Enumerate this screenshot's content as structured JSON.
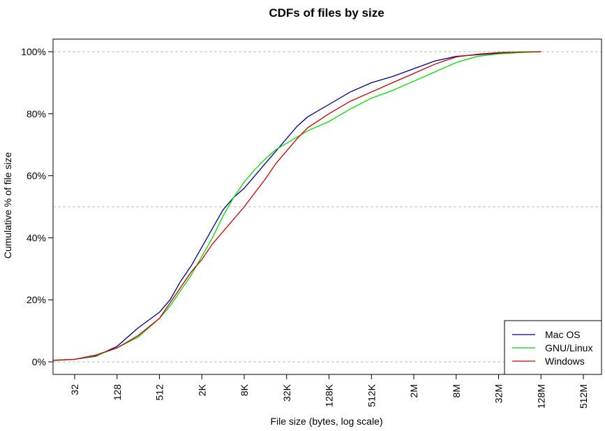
{
  "chart_data": {
    "type": "line",
    "title": "CDFs of files by size",
    "xlabel": "File size (bytes, log scale)",
    "ylabel": "Cumulative % of file size",
    "x_scale": "log2",
    "xlim_log2": [
      4,
      31
    ],
    "ylim": [
      0,
      1.02
    ],
    "x_ticks": [
      {
        "label": "32",
        "log2": 5
      },
      {
        "label": "128",
        "log2": 7
      },
      {
        "label": "512",
        "log2": 9
      },
      {
        "label": "2K",
        "log2": 11
      },
      {
        "label": "8K",
        "log2": 13
      },
      {
        "label": "32K",
        "log2": 15
      },
      {
        "label": "128K",
        "log2": 17
      },
      {
        "label": "512K",
        "log2": 19
      },
      {
        "label": "2M",
        "log2": 21
      },
      {
        "label": "8M",
        "log2": 23
      },
      {
        "label": "32M",
        "log2": 25
      },
      {
        "label": "128M",
        "log2": 27
      },
      {
        "label": "512M",
        "log2": 29
      }
    ],
    "y_ticks": [
      {
        "label": "0%",
        "value": 0
      },
      {
        "label": "20%",
        "value": 0.2
      },
      {
        "label": "40%",
        "value": 0.4
      },
      {
        "label": "60%",
        "value": 0.6
      },
      {
        "label": "80%",
        "value": 0.8
      },
      {
        "label": "100%",
        "value": 1.0
      }
    ],
    "reference_lines": [
      0,
      0.5,
      1.0
    ],
    "legend_position": "bottom-right",
    "series": [
      {
        "name": "Mac OS",
        "color": "#00008b",
        "points": [
          [
            4,
            0.005
          ],
          [
            5,
            0.008
          ],
          [
            6,
            0.018
          ],
          [
            7,
            0.05
          ],
          [
            8,
            0.11
          ],
          [
            9,
            0.16
          ],
          [
            9.5,
            0.2
          ],
          [
            10,
            0.26
          ],
          [
            10.5,
            0.31
          ],
          [
            11,
            0.37
          ],
          [
            11.5,
            0.43
          ],
          [
            12,
            0.49
          ],
          [
            12.5,
            0.53
          ],
          [
            13,
            0.56
          ],
          [
            13.5,
            0.6
          ],
          [
            14,
            0.64
          ],
          [
            14.5,
            0.68
          ],
          [
            15,
            0.72
          ],
          [
            15.5,
            0.76
          ],
          [
            16,
            0.79
          ],
          [
            17,
            0.83
          ],
          [
            18,
            0.87
          ],
          [
            19,
            0.9
          ],
          [
            20,
            0.92
          ],
          [
            21,
            0.945
          ],
          [
            22,
            0.97
          ],
          [
            23,
            0.985
          ],
          [
            24,
            0.99
          ],
          [
            25,
            0.995
          ],
          [
            26,
            0.998
          ],
          [
            27,
            1.0
          ]
        ]
      },
      {
        "name": "GNU/Linux",
        "color": "#00dd00",
        "points": [
          [
            4,
            0.005
          ],
          [
            5,
            0.008
          ],
          [
            6,
            0.02
          ],
          [
            7,
            0.045
          ],
          [
            8,
            0.08
          ],
          [
            9,
            0.14
          ],
          [
            9.5,
            0.18
          ],
          [
            10,
            0.23
          ],
          [
            10.5,
            0.28
          ],
          [
            11,
            0.34
          ],
          [
            11.5,
            0.4
          ],
          [
            12,
            0.47
          ],
          [
            12.5,
            0.53
          ],
          [
            13,
            0.58
          ],
          [
            13.5,
            0.62
          ],
          [
            14,
            0.655
          ],
          [
            14.5,
            0.685
          ],
          [
            15,
            0.705
          ],
          [
            15.5,
            0.725
          ],
          [
            16,
            0.745
          ],
          [
            17,
            0.775
          ],
          [
            18,
            0.815
          ],
          [
            19,
            0.85
          ],
          [
            20,
            0.875
          ],
          [
            21,
            0.905
          ],
          [
            22,
            0.935
          ],
          [
            23,
            0.965
          ],
          [
            24,
            0.985
          ],
          [
            25,
            0.993
          ],
          [
            26,
            0.997
          ],
          [
            27,
            1.0
          ]
        ]
      },
      {
        "name": "Windows",
        "color": "#cc0000",
        "points": [
          [
            4,
            0.005
          ],
          [
            5,
            0.008
          ],
          [
            6,
            0.022
          ],
          [
            7,
            0.045
          ],
          [
            8,
            0.085
          ],
          [
            9,
            0.14
          ],
          [
            9.5,
            0.19
          ],
          [
            10,
            0.24
          ],
          [
            10.5,
            0.29
          ],
          [
            11,
            0.33
          ],
          [
            11.5,
            0.38
          ],
          [
            12,
            0.42
          ],
          [
            12.5,
            0.46
          ],
          [
            13,
            0.5
          ],
          [
            13.5,
            0.545
          ],
          [
            14,
            0.59
          ],
          [
            14.5,
            0.64
          ],
          [
            15,
            0.68
          ],
          [
            15.5,
            0.72
          ],
          [
            16,
            0.755
          ],
          [
            17,
            0.8
          ],
          [
            18,
            0.84
          ],
          [
            19,
            0.87
          ],
          [
            20,
            0.9
          ],
          [
            21,
            0.93
          ],
          [
            22,
            0.96
          ],
          [
            23,
            0.983
          ],
          [
            24,
            0.992
          ],
          [
            25,
            0.997
          ],
          [
            26,
            0.999
          ],
          [
            27,
            1.0
          ]
        ]
      }
    ]
  }
}
